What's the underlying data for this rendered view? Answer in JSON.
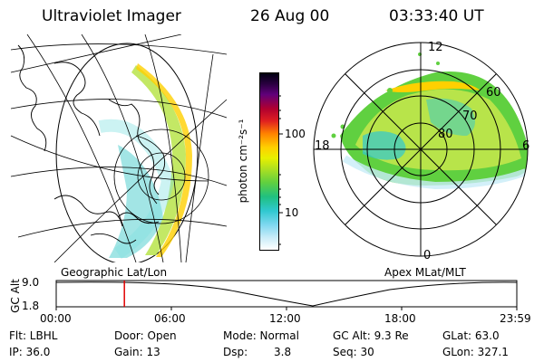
{
  "header": {
    "instrument": "Ultraviolet Imager",
    "date": "26 Aug 00",
    "time": "03:33:40 UT"
  },
  "left_panel": {
    "caption": "Geographic Lat/Lon"
  },
  "right_panel": {
    "caption": "Apex MLat/MLT",
    "mlt_labels": {
      "top": "12",
      "left": "18",
      "right": "6",
      "bottom": "0"
    },
    "lat_labels": [
      "60",
      "70",
      "80"
    ]
  },
  "colorbar": {
    "unit_label": "photon cm⁻²s⁻¹",
    "ticks": [
      "100",
      "10"
    ],
    "scale": "log"
  },
  "timeline": {
    "axis_label": "GC Alt",
    "y_ticks": [
      "9.0",
      "1.8"
    ],
    "x_ticks": [
      "00:00",
      "06:00",
      "12:00",
      "18:00",
      "23:59"
    ],
    "current_time_fraction": 0.148,
    "marker_color": "#e00000"
  },
  "footer": {
    "row1": {
      "flt": "Flt: LBHL",
      "door": "Door: Open",
      "mode": "Mode: Normal",
      "gcalt": "GC Alt: 9.3 Re",
      "glat": "GLat:  63.0"
    },
    "row2": {
      "ip": "IP: 36.0",
      "gain": "Gain: 13",
      "dsp": "Dsp:",
      "dsp_val": "3.8",
      "seq": "Seq: 30",
      "glon": "GLon: 327.1"
    }
  }
}
